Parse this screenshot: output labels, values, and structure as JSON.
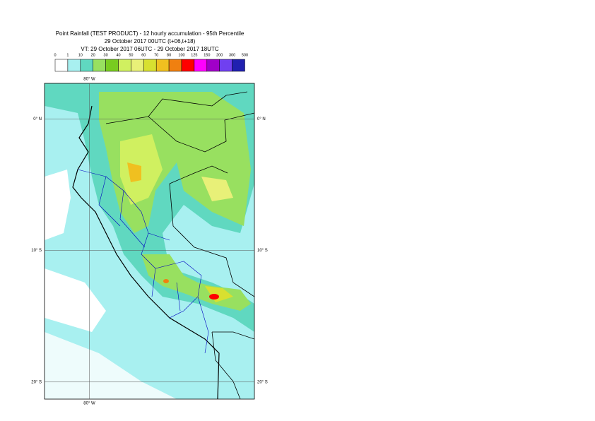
{
  "header": {
    "lines": [
      "Point Rainfall (TEST PRODUCT) - 12 hourly accumulation - 95th Percentile",
      "29 October 2017 00UTC (t+06,t+18)",
      "VT: 29 October 2017 06UTC - 29 October 2017 18UTC"
    ]
  },
  "legend": {
    "thresholds": [
      0,
      1,
      10,
      20,
      30,
      40,
      50,
      60,
      70,
      80,
      100,
      125,
      150,
      200,
      300,
      500
    ],
    "colors": [
      "#ffffff",
      "#a8f0f0",
      "#60d8c0",
      "#98e060",
      "#78cc20",
      "#d0f060",
      "#e8f078",
      "#d8e030",
      "#f0c020",
      "#f08010",
      "#ff0000",
      "#ff00ff",
      "#a000c8",
      "#7040f0",
      "#2020b0",
      "#101060"
    ]
  },
  "map": {
    "lonlim": [
      -83.4,
      -67.5
    ],
    "latlim": [
      -21.3,
      2.7
    ],
    "lonticks": [
      {
        "value": -80,
        "label": "80° W"
      }
    ],
    "latticks": [
      {
        "value": 0,
        "label": "0° N"
      },
      {
        "value": -10,
        "label": "10° S"
      },
      {
        "value": -20,
        "label": "20° S"
      }
    ]
  }
}
